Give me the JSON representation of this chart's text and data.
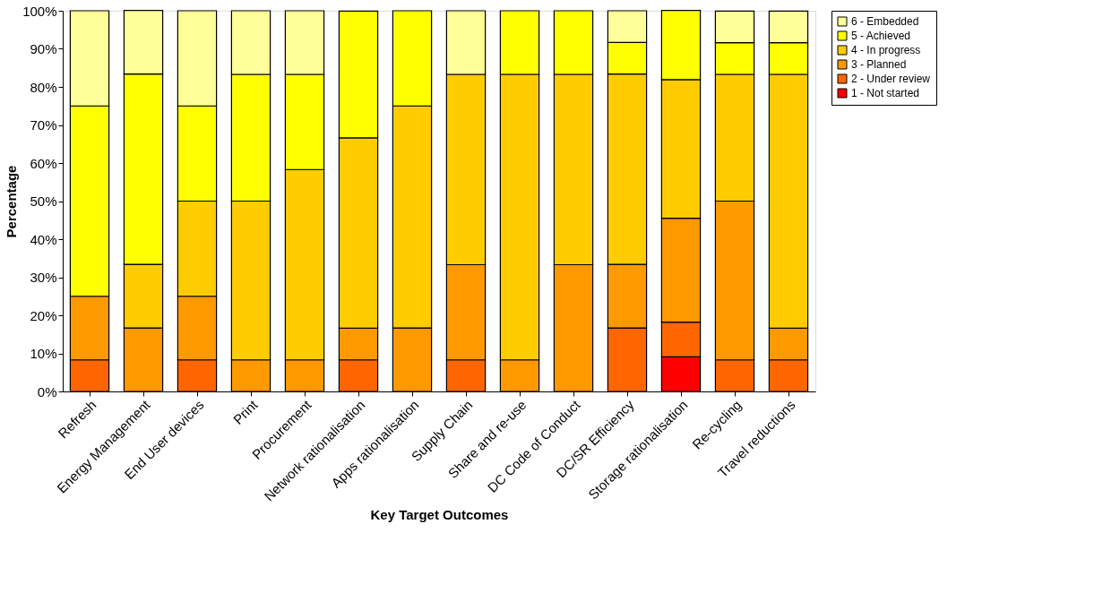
{
  "chart_data": {
    "type": "bar",
    "stacked": true,
    "xlabel": "Key Target Outcomes",
    "ylabel": "Percentage",
    "categories": [
      "Refresh",
      "Energy Management",
      "End User devices",
      "Print",
      "Procurement",
      "Network rationalisation",
      "Apps rationalisation",
      "Supply Chain",
      "Share and re-use",
      "DC Code of Conduct",
      "DC/SR Efficiency",
      "Storage rationalisation",
      "Re-cycling",
      "Travel reductions"
    ],
    "series": [
      {
        "name": "1 - Not started",
        "color": "#ff0000",
        "values": [
          0,
          0,
          0,
          0,
          0,
          0,
          0,
          0,
          0,
          0,
          0,
          9.1,
          0,
          0
        ]
      },
      {
        "name": "2 - Under review",
        "color": "#ff6600",
        "values": [
          8.3,
          0,
          8.3,
          0,
          0,
          8.3,
          0,
          8.3,
          0,
          0,
          16.7,
          9.1,
          8.3,
          8.3
        ]
      },
      {
        "name": "3 - Planned",
        "color": "#ff9900",
        "values": [
          16.7,
          16.7,
          16.7,
          8.3,
          8.3,
          8.3,
          16.7,
          25,
          8.3,
          33.3,
          16.7,
          27.3,
          41.7,
          8.3
        ]
      },
      {
        "name": "4 - In progress",
        "color": "#ffcc00",
        "values": [
          0,
          16.7,
          25,
          41.7,
          50,
          50,
          58.3,
          50,
          75,
          50,
          50,
          36.4,
          33.3,
          66.7
        ]
      },
      {
        "name": "5 - Achieved",
        "color": "#ffff00",
        "values": [
          50,
          50,
          25,
          33.3,
          25,
          33.3,
          25,
          0,
          16.7,
          16.7,
          8.3,
          18.2,
          8.3,
          8.3
        ]
      },
      {
        "name": "6 - Embedded",
        "color": "#ffff99",
        "values": [
          25,
          16.7,
          25,
          16.7,
          16.7,
          0,
          0,
          16.7,
          0,
          0,
          8.3,
          0,
          8.3,
          8.3
        ]
      }
    ],
    "ylim": [
      0,
      100
    ],
    "yticks": [
      {
        "value": 0,
        "label": "0%"
      },
      {
        "value": 10,
        "label": "10%"
      },
      {
        "value": 20,
        "label": "20%"
      },
      {
        "value": 30,
        "label": "30%"
      },
      {
        "value": 40,
        "label": "40%"
      },
      {
        "value": 50,
        "label": "50%"
      },
      {
        "value": 60,
        "label": "60%"
      },
      {
        "value": 70,
        "label": "70%"
      },
      {
        "value": 80,
        "label": "80%"
      },
      {
        "value": 90,
        "label": "90%"
      },
      {
        "value": 100,
        "label": "100%"
      }
    ],
    "grid": false,
    "legend": "top right"
  }
}
